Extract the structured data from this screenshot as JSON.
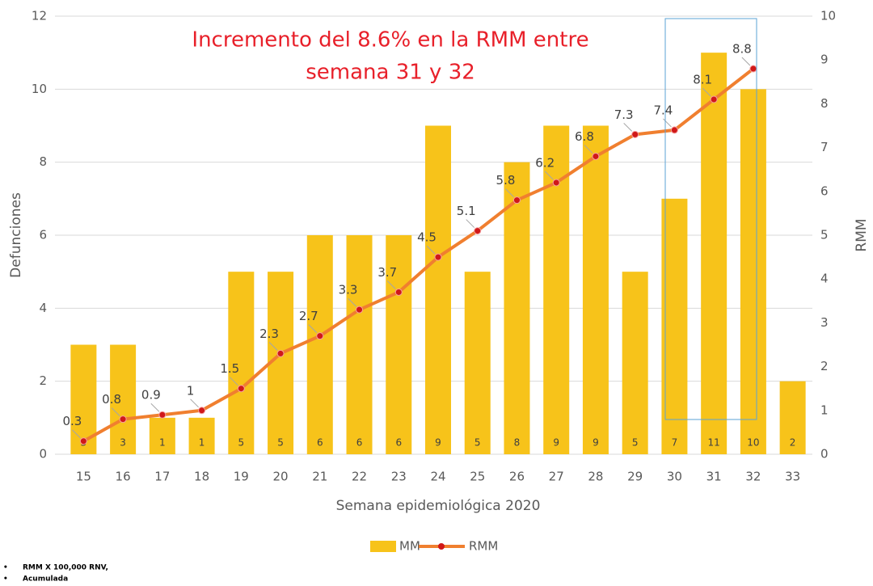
{
  "chart_data": {
    "type": "bar",
    "annotation": [
      "Incremento del 8.6% en la RMM entre",
      "semana 31 y 32"
    ],
    "x_label": "Semana epidemiológica 2020",
    "y_label": "Defunciones",
    "y2_label": "RMM",
    "categories": [
      "15",
      "16",
      "17",
      "18",
      "19",
      "20",
      "21",
      "22",
      "23",
      "24",
      "25",
      "26",
      "27",
      "28",
      "29",
      "30",
      "31",
      "32",
      "33"
    ],
    "series": [
      {
        "name": "MM",
        "type": "bar",
        "color": "#f7c31a",
        "values": [
          3,
          3,
          1,
          1,
          5,
          5,
          6,
          6,
          6,
          9,
          5,
          8,
          9,
          9,
          5,
          7,
          11,
          10,
          2
        ]
      },
      {
        "name": "RMM",
        "type": "line",
        "axis": "y2",
        "color": "#f07f2f",
        "marker_color": "#d01818",
        "values": [
          0.3,
          0.8,
          0.9,
          1,
          1.5,
          2.3,
          2.7,
          3.3,
          3.7,
          4.5,
          5.1,
          5.8,
          6.2,
          6.8,
          7.3,
          7.4,
          8.1,
          8.8,
          null
        ]
      }
    ],
    "ylim": [
      0,
      12
    ],
    "yticks": [
      0,
      2,
      4,
      6,
      8,
      10,
      12
    ],
    "y2lim": [
      0,
      10
    ],
    "y2ticks": [
      0,
      1,
      2,
      3,
      4,
      5,
      6,
      7,
      8,
      9,
      10
    ],
    "grid": true,
    "legend": "bottom",
    "notes": [
      "RMM X 100,000 RNV,",
      "Acumulada"
    ]
  }
}
